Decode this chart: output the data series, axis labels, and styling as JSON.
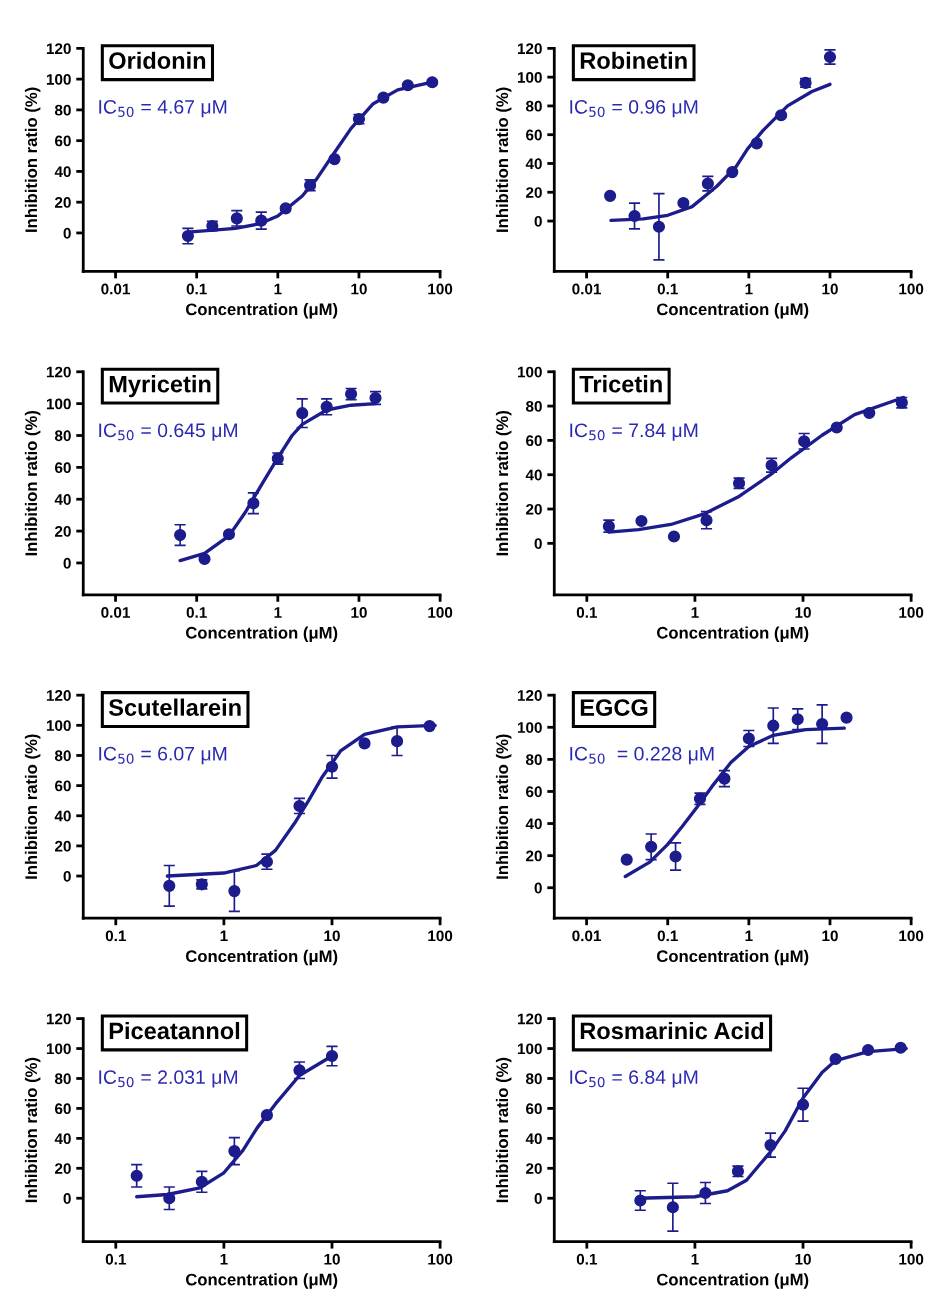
{
  "chart_data": [
    {
      "type": "scatter",
      "title": "Oridonin",
      "xlabel": "Concentration (μM)",
      "ylabel": "Inhibition ratio (%)",
      "annotations": [
        "IC$_{50}$ = 4.67 μM"
      ],
      "log": "x",
      "xlim": [
        0.004,
        100
      ],
      "xticks": [
        0.01,
        0.1,
        1,
        10,
        100
      ],
      "ylim": [
        -25,
        120
      ],
      "yticks": [
        0,
        20,
        40,
        60,
        80,
        100,
        120
      ],
      "series": [
        {
          "marker": "circle",
          "color": "#1c1c8c",
          "x": [
            0.078,
            0.156,
            0.3125,
            0.625,
            1.25,
            2.5,
            5,
            10,
            20,
            40,
            80
          ],
          "values": [
            -2,
            4.5,
            9.5,
            8,
            16,
            31,
            48,
            74,
            88,
            96,
            98
          ],
          "errors": [
            5,
            3,
            5,
            5.5,
            null,
            3.5,
            null,
            3,
            null,
            null,
            null
          ]
        },
        {
          "type": "line",
          "marker": "none",
          "color": "#1c1c8c",
          "x": [
            0.078,
            0.3,
            0.6,
            1,
            2,
            3,
            4.67,
            8,
            15,
            30,
            80
          ],
          "values": [
            0.5,
            3,
            6,
            11,
            24,
            35,
            50,
            68,
            84,
            93,
            98
          ]
        }
      ]
    },
    {
      "type": "scatter",
      "title": "Robinetin",
      "xlabel": "Concentration (μM)",
      "ylabel": "Inhibition ratio (%)",
      "annotations": [
        "IC$_{50}$ = 0.96 μM"
      ],
      "log": "x",
      "xlim": [
        0.004,
        100
      ],
      "xticks": [
        0.01,
        0.1,
        1,
        10,
        100
      ],
      "ylim": [
        -35,
        120
      ],
      "yticks": [
        0,
        20,
        40,
        60,
        80,
        100,
        120
      ],
      "series": [
        {
          "marker": "circle",
          "color": "#1c1c8c",
          "x": [
            0.0195,
            0.039,
            0.078,
            0.156,
            0.3125,
            0.625,
            1.25,
            2.5,
            5,
            10
          ],
          "values": [
            17.5,
            3.5,
            -4,
            12.5,
            26,
            34,
            54,
            73.5,
            96,
            114
          ],
          "errors": [
            null,
            9,
            23,
            null,
            5,
            null,
            null,
            null,
            3,
            5
          ]
        },
        {
          "type": "line",
          "marker": "none",
          "color": "#1c1c8c",
          "x": [
            0.02,
            0.05,
            0.1,
            0.2,
            0.4,
            0.7,
            0.96,
            1.5,
            3,
            6,
            10
          ],
          "values": [
            0.5,
            1.5,
            4,
            10,
            24,
            38,
            50,
            63,
            80,
            90,
            95
          ]
        }
      ]
    },
    {
      "type": "scatter",
      "title": "Myricetin",
      "xlabel": "Concentration (μM)",
      "ylabel": "Inhibition ratio (%)",
      "annotations": [
        "IC$_{50}$ = 0.645 μM"
      ],
      "log": "x",
      "xlim": [
        0.004,
        100
      ],
      "xticks": [
        0.01,
        0.1,
        1,
        10,
        100
      ],
      "ylim": [
        -20,
        120
      ],
      "yticks": [
        0,
        20,
        40,
        60,
        80,
        100,
        120
      ],
      "series": [
        {
          "marker": "circle",
          "color": "#1c1c8c",
          "x": [
            0.0625,
            0.125,
            0.25,
            0.5,
            1,
            2,
            4,
            8,
            16
          ],
          "values": [
            17.5,
            2.5,
            18,
            37.5,
            65.5,
            94,
            98,
            106,
            103.5
          ],
          "errors": [
            6.5,
            null,
            null,
            6.5,
            3.5,
            9,
            5,
            3.5,
            4
          ]
        },
        {
          "type": "line",
          "marker": "none",
          "color": "#1c1c8c",
          "x": [
            0.0625,
            0.125,
            0.25,
            0.4,
            0.645,
            1,
            1.5,
            2,
            4,
            8,
            16
          ],
          "values": [
            1.5,
            6,
            17,
            32,
            50,
            66,
            80,
            87,
            96,
            99,
            100
          ]
        }
      ]
    },
    {
      "type": "scatter",
      "title": "Tricetin",
      "xlabel": "Concentration (μM)",
      "ylabel": "Inhibition ratio (%)",
      "annotations": [
        "IC$_{50}$ = 7.84 μM"
      ],
      "log": "x",
      "xlim": [
        0.05,
        100
      ],
      "xticks": [
        0.1,
        1,
        10,
        100
      ],
      "ylim": [
        -30,
        100
      ],
      "yticks": [
        0,
        20,
        40,
        60,
        80,
        100
      ],
      "series": [
        {
          "marker": "circle",
          "color": "#1c1c8c",
          "x": [
            0.16,
            0.32,
            0.64,
            1.28,
            2.56,
            5.12,
            10.24,
            20.5,
            41,
            82
          ],
          "values": [
            10,
            13,
            4,
            13.5,
            35,
            45.5,
            59.5,
            67.5,
            76,
            82
          ],
          "errors": [
            3.5,
            null,
            null,
            5,
            3,
            4,
            4.5,
            null,
            null,
            3
          ]
        },
        {
          "type": "line",
          "marker": "none",
          "color": "#1c1c8c",
          "x": [
            0.16,
            0.3,
            0.6,
            1.2,
            2.5,
            5,
            7.84,
            15,
            30,
            85
          ],
          "values": [
            6.5,
            8,
            11,
            17,
            27,
            40,
            50,
            63,
            75,
            85
          ]
        }
      ]
    },
    {
      "type": "scatter",
      "title": "Scutellarein",
      "xlabel": "Concentration (μM)",
      "ylabel": "Inhibition ratio (%)",
      "annotations": [
        "IC$_{50}$ = 6.07 μM"
      ],
      "log": "x",
      "xlim": [
        0.05,
        100
      ],
      "xticks": [
        0.1,
        1,
        10,
        100
      ],
      "ylim": [
        -28,
        120
      ],
      "yticks": [
        0,
        20,
        40,
        60,
        80,
        100,
        120
      ],
      "series": [
        {
          "marker": "circle",
          "color": "#1c1c8c",
          "x": [
            0.3125,
            0.625,
            1.25,
            2.5,
            5,
            10,
            20,
            40,
            80
          ],
          "values": [
            -6.5,
            -5.5,
            -10,
            9.5,
            46.5,
            72.5,
            88,
            89.5,
            99.5
          ],
          "errors": [
            13.5,
            3,
            13.5,
            5,
            5,
            7.5,
            null,
            9.5,
            null
          ]
        },
        {
          "type": "line",
          "marker": "none",
          "color": "#1c1c8c",
          "x": [
            0.3,
            1,
            2,
            3,
            4.5,
            6.07,
            8,
            12,
            20,
            40,
            90
          ],
          "values": [
            0,
            2,
            7,
            17,
            35,
            50,
            65,
            83,
            94,
            99,
            100
          ]
        }
      ]
    },
    {
      "type": "scatter",
      "title": "EGCG",
      "xlabel": "Concentration (μM)",
      "ylabel": "Inhibition ratio (%)",
      "annotations": [
        "IC$_{50}$  = 0.228 μM"
      ],
      "log": "x",
      "xlim": [
        0.004,
        100
      ],
      "xticks": [
        0.01,
        0.1,
        1,
        10,
        100
      ],
      "ylim": [
        -19,
        120
      ],
      "yticks": [
        0,
        20,
        40,
        60,
        80,
        100,
        120
      ],
      "series": [
        {
          "marker": "circle",
          "color": "#1c1c8c",
          "x": [
            0.03125,
            0.0625,
            0.125,
            0.25,
            0.5,
            1,
            2,
            4,
            8,
            16
          ],
          "values": [
            17.5,
            25.5,
            19.5,
            55.5,
            68,
            93,
            101,
            105,
            102,
            106
          ],
          "errors": [
            null,
            8,
            8.5,
            3.5,
            5,
            5,
            11,
            6.5,
            12,
            null
          ]
        },
        {
          "type": "line",
          "marker": "none",
          "color": "#1c1c8c",
          "x": [
            0.03,
            0.06,
            0.1,
            0.15,
            0.228,
            0.35,
            0.6,
            1,
            2,
            5,
            15
          ],
          "values": [
            7,
            16,
            27,
            38,
            50,
            63,
            78,
            88,
            95,
            98.5,
            99.5
          ]
        }
      ]
    },
    {
      "type": "scatter",
      "title": "Piceatannol",
      "xlabel": "Concentration (μM)",
      "ylabel": "Inhibition ratio (%)",
      "annotations": [
        "IC$_{50}$ = 2.031 μM"
      ],
      "log": "x",
      "xlim": [
        0.05,
        100
      ],
      "xticks": [
        0.1,
        1,
        10,
        100
      ],
      "ylim": [
        -29,
        120
      ],
      "yticks": [
        0,
        20,
        40,
        60,
        80,
        100,
        120
      ],
      "series": [
        {
          "marker": "circle",
          "color": "#1c1c8c",
          "x": [
            0.156,
            0.3125,
            0.625,
            1.25,
            2.5,
            5,
            10
          ],
          "values": [
            15,
            0,
            11,
            31.5,
            55.5,
            85.5,
            95
          ],
          "errors": [
            7.5,
            7.5,
            7,
            9,
            null,
            5.5,
            6.5
          ]
        },
        {
          "type": "line",
          "marker": "none",
          "color": "#1c1c8c",
          "x": [
            0.156,
            0.3,
            0.6,
            1,
            1.5,
            2.031,
            3,
            5,
            10
          ],
          "values": [
            1,
            2.5,
            7,
            17,
            32,
            47,
            63,
            82,
            95
          ]
        }
      ]
    },
    {
      "type": "scatter",
      "title": "Rosmarinic Acid",
      "xlabel": "Concentration (μM)",
      "ylabel": "Inhibition ratio (%)",
      "annotations": [
        "IC$_{50}$ = 6.84 μM"
      ],
      "log": "x",
      "xlim": [
        0.05,
        100
      ],
      "xticks": [
        0.1,
        1,
        10,
        100
      ],
      "ylim": [
        -29,
        120
      ],
      "yticks": [
        0,
        20,
        40,
        60,
        80,
        100,
        120
      ],
      "series": [
        {
          "marker": "circle",
          "color": "#1c1c8c",
          "x": [
            0.3125,
            0.625,
            1.25,
            2.5,
            5,
            10,
            20,
            40,
            80
          ],
          "values": [
            -1.5,
            -6,
            3.5,
            18,
            35.5,
            62.5,
            93,
            99,
            100.5
          ],
          "errors": [
            6.5,
            16,
            7,
            3.5,
            8,
            11,
            null,
            null,
            null
          ]
        },
        {
          "type": "line",
          "marker": "none",
          "color": "#1c1c8c",
          "x": [
            0.3,
            1,
            2,
            3,
            5,
            6.84,
            10,
            15,
            20,
            40,
            90
          ],
          "values": [
            0,
            1,
            5,
            12,
            31,
            45,
            67,
            84,
            92,
            98,
            100
          ]
        }
      ]
    }
  ]
}
